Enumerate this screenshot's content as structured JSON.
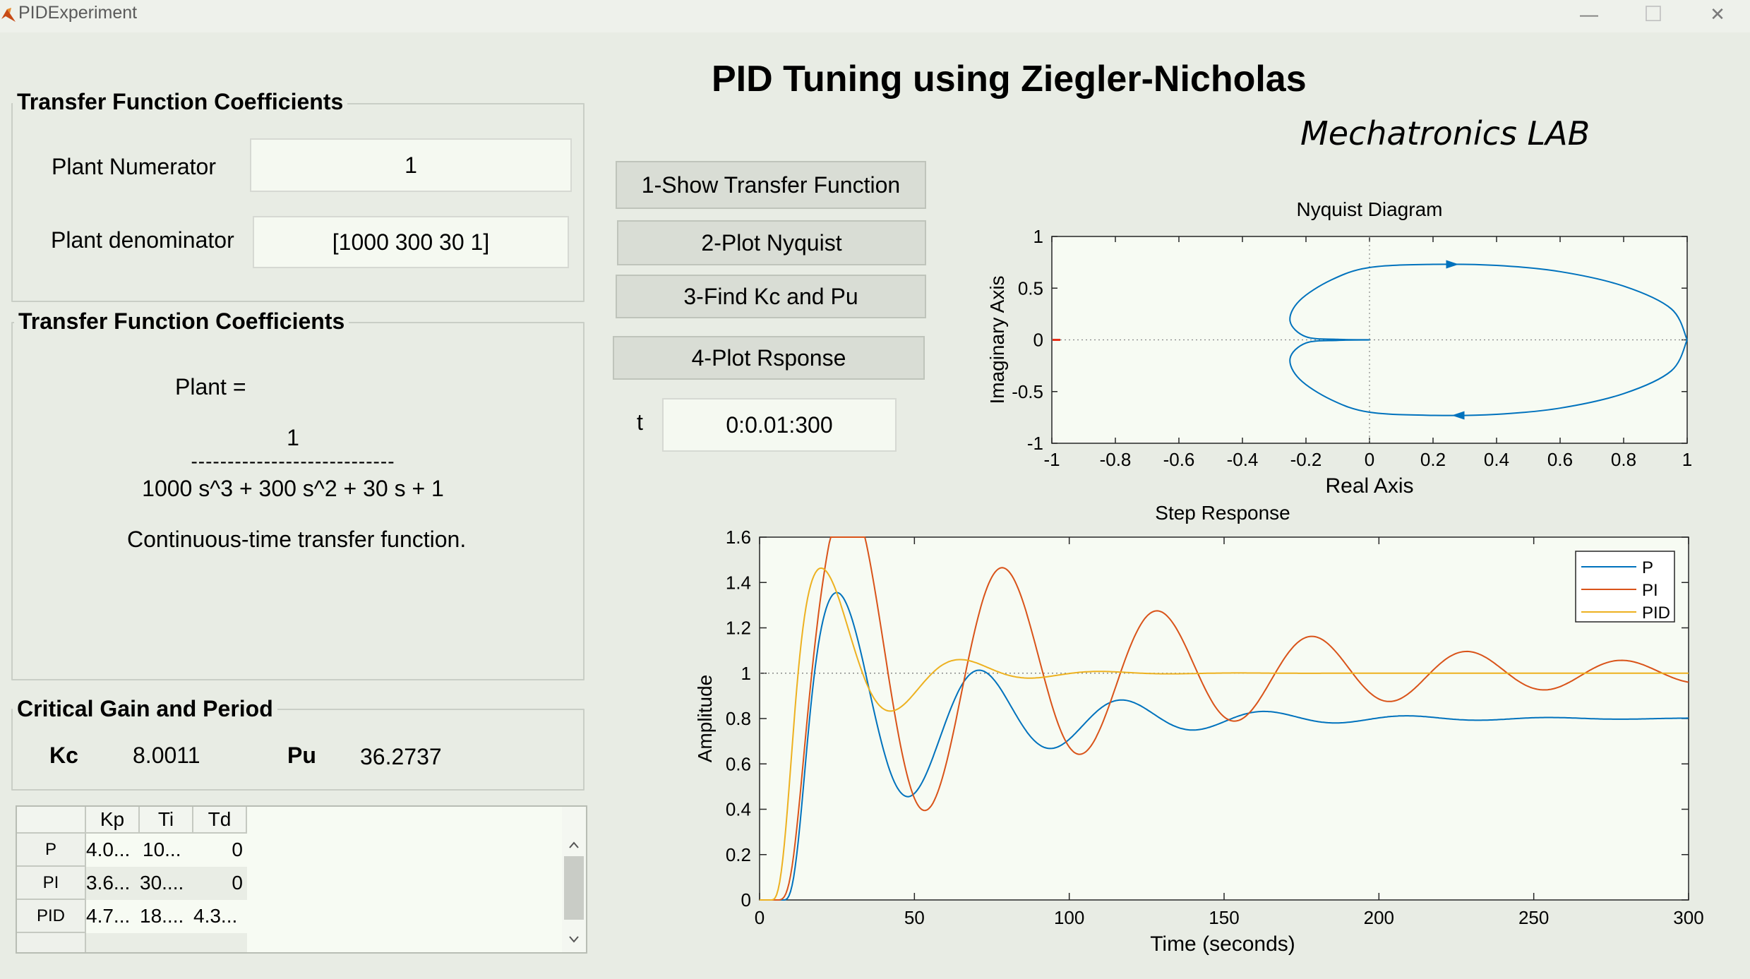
{
  "window": {
    "title": "PIDExperiment",
    "minimize": "—",
    "maximize": "☐",
    "close": "✕"
  },
  "header": {
    "title": "PID Tuning using Ziegler-Nicholas",
    "subtitle": "Mechatronics LAB"
  },
  "tf_panel": {
    "title": "Transfer Function Coefficients",
    "numerator_label": "Plant Numerator",
    "numerator_value": "1",
    "denominator_label": "Plant denominator",
    "denominator_value": "[1000 300 30 1]"
  },
  "display_panel": {
    "title": "Transfer Function Coefficients",
    "plant_label": "Plant =",
    "numerator": "1",
    "divider": "----------------------------",
    "denominator": "1000 s^3 + 300 s^2 + 30 s + 1",
    "note": "Continuous-time transfer function."
  },
  "critical_panel": {
    "title": "Critical Gain and Period",
    "kc_label": "Kc",
    "kc_value": "8.0011",
    "pu_label": "Pu",
    "pu_value": "36.2737"
  },
  "buttons": {
    "show_tf": "1-Show Transfer Function",
    "plot_nyquist": "2-Plot Nyquist",
    "find_kc": "3-Find Kc and Pu",
    "plot_response": "4-Plot Rsponse"
  },
  "time_input": {
    "label": "t",
    "value": "0:0.01:300"
  },
  "table": {
    "columns": [
      "Kp",
      "Ti",
      "Td"
    ],
    "rows": [
      {
        "name": "P",
        "kp": "4.0...",
        "ti": "10...",
        "td": "0"
      },
      {
        "name": "PI",
        "kp": "3.6...",
        "ti": "30....",
        "td": "0"
      },
      {
        "name": "PID",
        "kp": "4.7...",
        "ti": "18....",
        "td": "4.3..."
      }
    ]
  },
  "chart_data": [
    {
      "type": "line",
      "title": "Nyquist Diagram",
      "xlabel": "Real Axis",
      "ylabel": "Imaginary Axis",
      "xlim": [
        -1,
        1
      ],
      "ylim": [
        -1,
        1
      ],
      "xticks": [
        "-1",
        "-0.8",
        "-0.6",
        "-0.4",
        "-0.2",
        "0",
        "0.2",
        "0.4",
        "0.6",
        "0.8",
        "1"
      ],
      "yticks": [
        "1",
        "0.5",
        "0",
        "-0.5",
        "-1"
      ],
      "series": [
        {
          "color": "#0072bd",
          "points": [
            [
              1,
              0
            ],
            [
              0.95,
              0.3
            ],
            [
              0.8,
              0.52
            ],
            [
              0.6,
              0.66
            ],
            [
              0.4,
              0.72
            ],
            [
              0.2,
              0.73
            ],
            [
              0,
              0.7
            ],
            [
              -0.12,
              0.58
            ],
            [
              -0.22,
              0.38
            ],
            [
              -0.25,
              0.18
            ],
            [
              -0.2,
              0.03
            ],
            [
              -0.1,
              0.005
            ],
            [
              0,
              0
            ],
            [
              -0.1,
              -0.005
            ],
            [
              -0.2,
              -0.03
            ],
            [
              -0.25,
              -0.18
            ],
            [
              -0.22,
              -0.38
            ],
            [
              -0.12,
              -0.58
            ],
            [
              0,
              -0.7
            ],
            [
              0.2,
              -0.73
            ],
            [
              0.4,
              -0.72
            ],
            [
              0.6,
              -0.66
            ],
            [
              0.8,
              -0.52
            ],
            [
              0.95,
              -0.3
            ],
            [
              1,
              0
            ]
          ]
        }
      ],
      "grid": false
    },
    {
      "type": "line",
      "title": "Step Response",
      "xlabel": "Time (seconds)",
      "ylabel": "Amplitude",
      "xlim": [
        0,
        300
      ],
      "ylim": [
        0,
        1.6
      ],
      "xticks": [
        "0",
        "50",
        "100",
        "150",
        "200",
        "250",
        "300"
      ],
      "yticks": [
        "0",
        "0.2",
        "0.4",
        "0.6",
        "0.8",
        "1",
        "1.2",
        "1.4",
        "1.6"
      ],
      "legend": "top-right",
      "series": [
        {
          "name": "P",
          "color": "#0072bd",
          "final": 0.8,
          "peak_time": 26,
          "period": 46,
          "decay": 48,
          "lag": 8
        },
        {
          "name": "PI",
          "color": "#d95319",
          "final": 1.0,
          "peak_time": 29,
          "period": 50,
          "decay": 95,
          "lag": 6
        },
        {
          "name": "PID",
          "color": "#edb120",
          "final": 1.0,
          "peak_time": 22,
          "period": 45,
          "decay": 22,
          "lag": 4
        }
      ]
    }
  ]
}
